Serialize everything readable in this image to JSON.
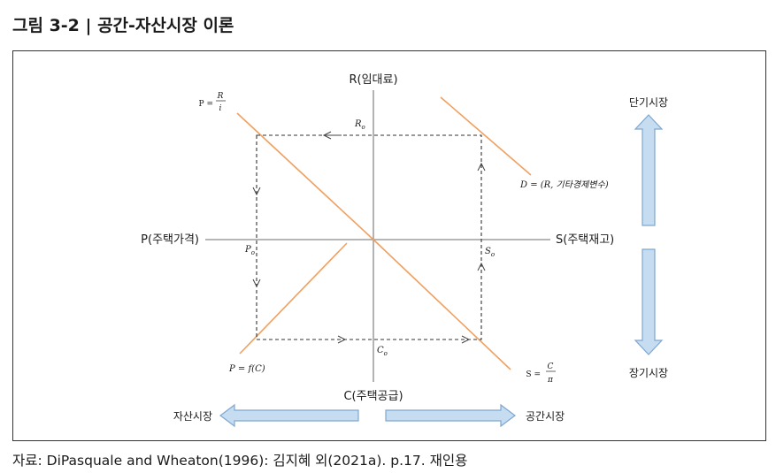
{
  "figure": {
    "title": "그림 3-2  |  공간-자산시장 이론",
    "source": "자료: DiPasquale and Wheaton(1996): 김지혜 외(2021a). p.17. 재인용"
  },
  "axes": {
    "top": "R(임대료)",
    "bottom": "C(주택공급)",
    "left": "P(주택가격)",
    "right": "S(주택재고)"
  },
  "curves": {
    "price_lhs": "P =",
    "price_num": "R",
    "price_den": "i",
    "demand": "D = (R, 기타경제변수)",
    "construction": "P = f(C)",
    "stock_lhs": "S =",
    "stock_num": "C",
    "stock_den": "π"
  },
  "points": {
    "r0": "R",
    "p0": "P",
    "s0": "S",
    "c0": "C",
    "sub": "o"
  },
  "side": {
    "short_run": "단기시장",
    "long_run": "장기시장",
    "asset_market": "자산시장",
    "space_market": "공간시장"
  },
  "colors": {
    "curve": "#f0a060",
    "axis": "#8a8a8a",
    "arrow_fill": "#c5dcf1",
    "arrow_stroke": "#7fa7cf"
  }
}
